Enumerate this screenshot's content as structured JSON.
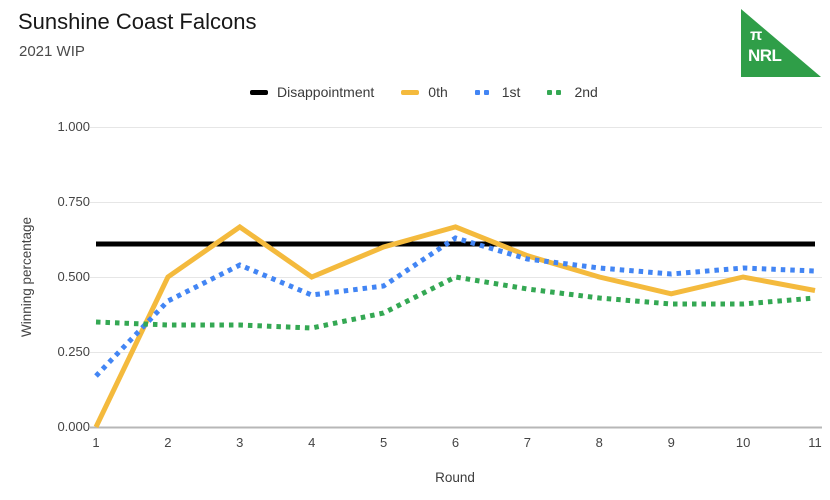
{
  "logo": {
    "pi_symbol": "π",
    "text": "NRL",
    "background_color": "#2F9E48",
    "text_color": "#FFFFFF"
  },
  "chart_data": {
    "type": "line",
    "title": "Sunshine Coast Falcons",
    "subtitle": "2021 WIP",
    "xlabel": "Round",
    "ylabel": "Winning percentage",
    "x": [
      1,
      2,
      3,
      4,
      5,
      6,
      7,
      8,
      9,
      10,
      11
    ],
    "xlim": [
      1,
      11
    ],
    "ylim": [
      0,
      1
    ],
    "yticks": [
      0,
      0.25,
      0.5,
      0.75,
      1
    ],
    "ytick_labels": [
      "0.000",
      "0.250",
      "0.500",
      "0.750",
      "1.000"
    ],
    "grid": true,
    "legend_position": "top",
    "colors": {
      "grid": "#E6E6E6",
      "axis": "#B7B7B7",
      "tick_text": "#444444"
    },
    "series": [
      {
        "name": "Disappointment",
        "color": "#000000",
        "style": "solid",
        "values": [
          0.61,
          0.61,
          0.61,
          0.61,
          0.61,
          0.61,
          0.61,
          0.61,
          0.61,
          0.61,
          0.61
        ]
      },
      {
        "name": "0th",
        "color": "#F4BA3D",
        "style": "solid",
        "values": [
          0.0,
          0.5,
          0.667,
          0.5,
          0.6,
          0.667,
          0.571,
          0.5,
          0.444,
          0.5,
          0.455
        ]
      },
      {
        "name": "1st",
        "color": "#4285F4",
        "style": "dotted",
        "values": [
          0.17,
          0.42,
          0.54,
          0.44,
          0.47,
          0.63,
          0.56,
          0.53,
          0.51,
          0.53,
          0.52
        ]
      },
      {
        "name": "2nd",
        "color": "#34A853",
        "style": "dotted",
        "values": [
          0.35,
          0.34,
          0.34,
          0.33,
          0.38,
          0.5,
          0.46,
          0.43,
          0.41,
          0.41,
          0.43
        ]
      }
    ]
  }
}
